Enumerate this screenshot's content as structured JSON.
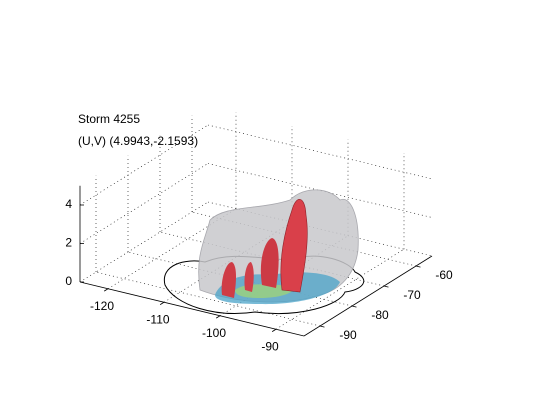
{
  "chart_data": {
    "type": "isosurface",
    "title": [
      "Storm 4255",
      "(U,V) (4.9943,-2.1593)"
    ],
    "xlim": [
      -125,
      -85
    ],
    "xticks": [
      -120,
      -110,
      -100,
      -90
    ],
    "ylim": [
      -95,
      -55
    ],
    "yticks": [
      -90,
      -80,
      -70,
      -60
    ],
    "zlim": [
      0,
      5
    ],
    "zticks": [
      0,
      2,
      4
    ],
    "grid": true
  }
}
